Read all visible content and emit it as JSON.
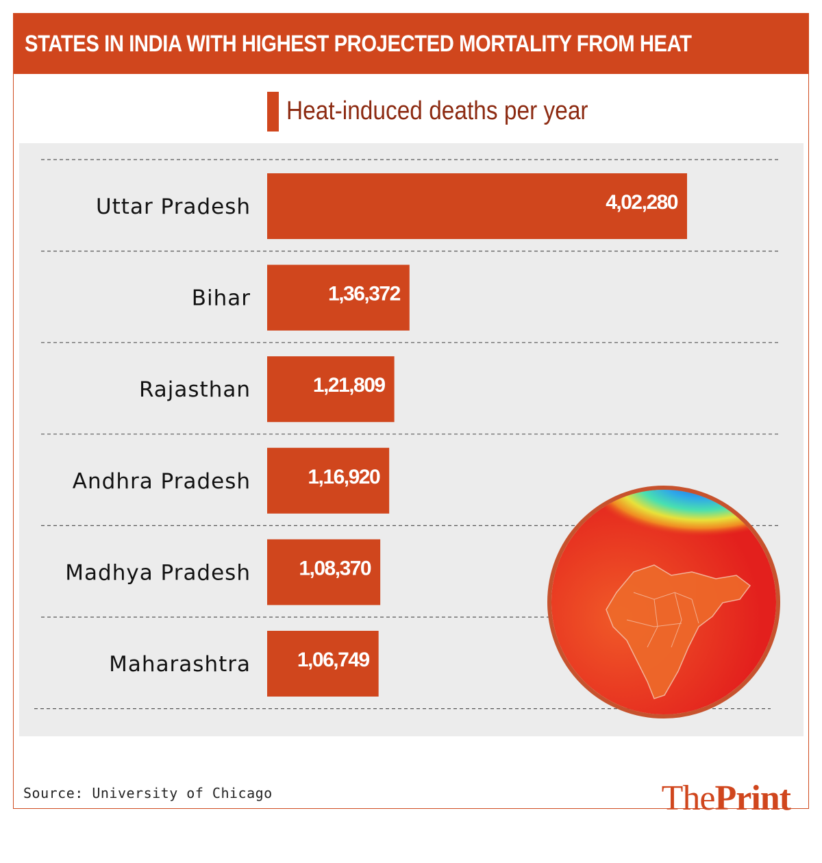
{
  "header": {
    "title": "STATES IN INDIA WITH HIGHEST PROJECTED MORTALITY FROM HEAT"
  },
  "legend": {
    "label": "Heat-induced deaths per year"
  },
  "colors": {
    "accent": "#d0461d",
    "panel": "#ececec",
    "legend_text": "#8c2a11"
  },
  "chart_data": {
    "type": "bar",
    "orientation": "horizontal",
    "title": "STATES IN INDIA WITH HIGHEST PROJECTED MORTALITY FROM HEAT",
    "categories": [
      "Uttar Pradesh",
      "Bihar",
      "Rajasthan",
      "Andhra Pradesh",
      "Madhya Pradesh",
      "Maharashtra"
    ],
    "values": [
      402280,
      136372,
      121809,
      116920,
      108370,
      106749
    ],
    "value_labels": [
      "4,02,280",
      "1,36,372",
      "1,21,809",
      "1,16,920",
      "1,08,370",
      "1,06,749"
    ],
    "series": [
      {
        "name": "Heat-induced deaths per year",
        "values": [
          402280,
          136372,
          121809,
          116920,
          108370,
          106749
        ]
      }
    ],
    "xlim": [
      0,
      402280
    ],
    "grid": true,
    "legend_position": "top"
  },
  "map": {
    "icon": "india-heat-map-icon"
  },
  "footer": {
    "source": "Source: University of Chicago",
    "brand_part1": "The",
    "brand_part2": "Print"
  }
}
